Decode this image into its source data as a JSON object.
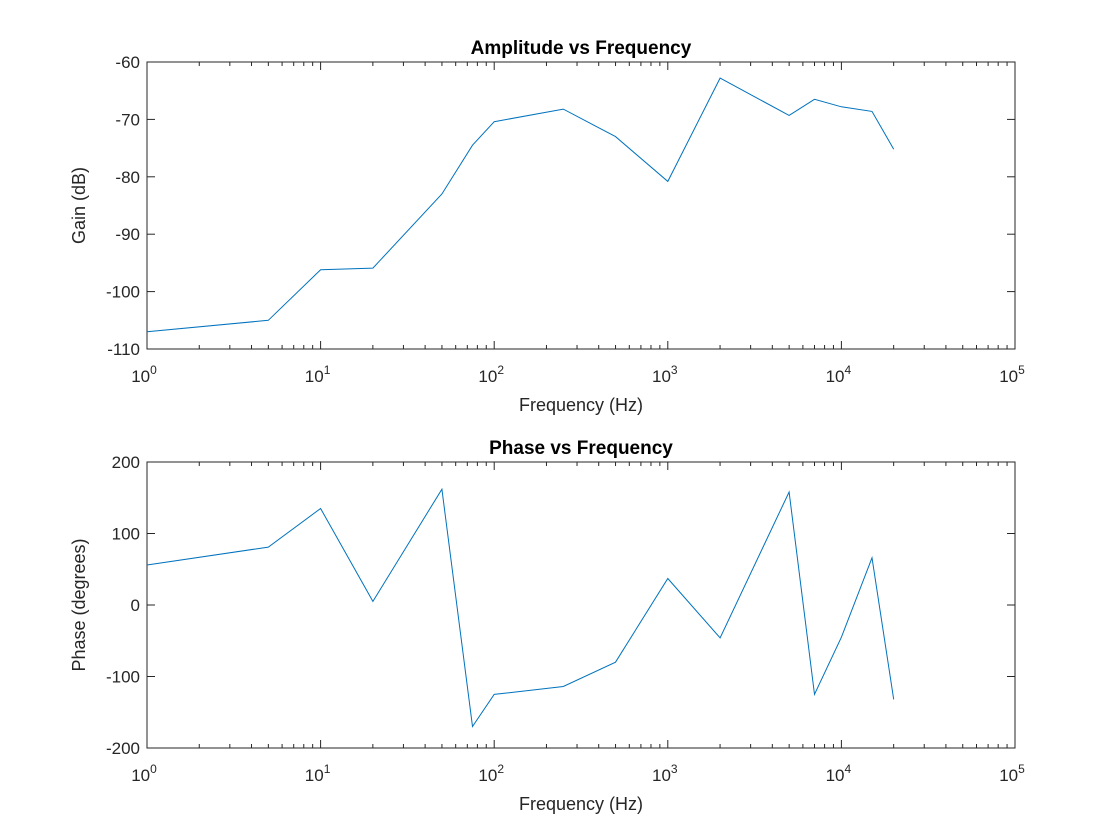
{
  "chart_data": [
    {
      "type": "line",
      "title": "Amplitude vs Frequency",
      "xlabel": "Frequency (Hz)",
      "ylabel": "Gain (dB)",
      "xscale": "log",
      "xlim": [
        1,
        100000
      ],
      "ylim": [
        -110,
        -60
      ],
      "xticks": [
        1,
        10,
        100,
        1000,
        10000,
        100000
      ],
      "xtick_labels": [
        {
          "base": "10",
          "exp": "0"
        },
        {
          "base": "10",
          "exp": "1"
        },
        {
          "base": "10",
          "exp": "2"
        },
        {
          "base": "10",
          "exp": "3"
        },
        {
          "base": "10",
          "exp": "4"
        },
        {
          "base": "10",
          "exp": "5"
        }
      ],
      "yticks": [
        -110,
        -100,
        -90,
        -80,
        -70,
        -60
      ],
      "ytick_labels": [
        "-110",
        "-100",
        "-90",
        "-80",
        "-70",
        "-60"
      ],
      "grid": false,
      "series_color": "#0072bd",
      "x": [
        1,
        5,
        10,
        20,
        50,
        75,
        100,
        250,
        500,
        1000,
        2000,
        5000,
        7000,
        10000,
        15000,
        20000
      ],
      "y": [
        -107,
        -105,
        -96.2,
        -95.9,
        -83,
        -74.5,
        -70.4,
        -68.2,
        -73,
        -80.8,
        -62.8,
        -69.3,
        -66.5,
        -67.8,
        -68.6,
        -75.2
      ]
    },
    {
      "type": "line",
      "title": "Phase vs Frequency",
      "xlabel": "Frequency (Hz)",
      "ylabel": "Phase (degrees)",
      "xscale": "log",
      "xlim": [
        1,
        100000
      ],
      "ylim": [
        -200,
        200
      ],
      "xticks": [
        1,
        10,
        100,
        1000,
        10000,
        100000
      ],
      "xtick_labels": [
        {
          "base": "10",
          "exp": "0"
        },
        {
          "base": "10",
          "exp": "1"
        },
        {
          "base": "10",
          "exp": "2"
        },
        {
          "base": "10",
          "exp": "3"
        },
        {
          "base": "10",
          "exp": "4"
        },
        {
          "base": "10",
          "exp": "5"
        }
      ],
      "yticks": [
        -200,
        -100,
        0,
        100,
        200
      ],
      "ytick_labels": [
        "-200",
        "-100",
        "0",
        "100",
        "200"
      ],
      "grid": false,
      "series_color": "#0072bd",
      "x": [
        1,
        5,
        10,
        20,
        50,
        75,
        100,
        250,
        500,
        1000,
        2000,
        5000,
        7000,
        10000,
        15000,
        20000
      ],
      "y": [
        56,
        81,
        135,
        5,
        162,
        -170,
        -125,
        -114,
        -80,
        37,
        -46,
        158,
        -125,
        -45,
        66,
        -132
      ]
    }
  ]
}
